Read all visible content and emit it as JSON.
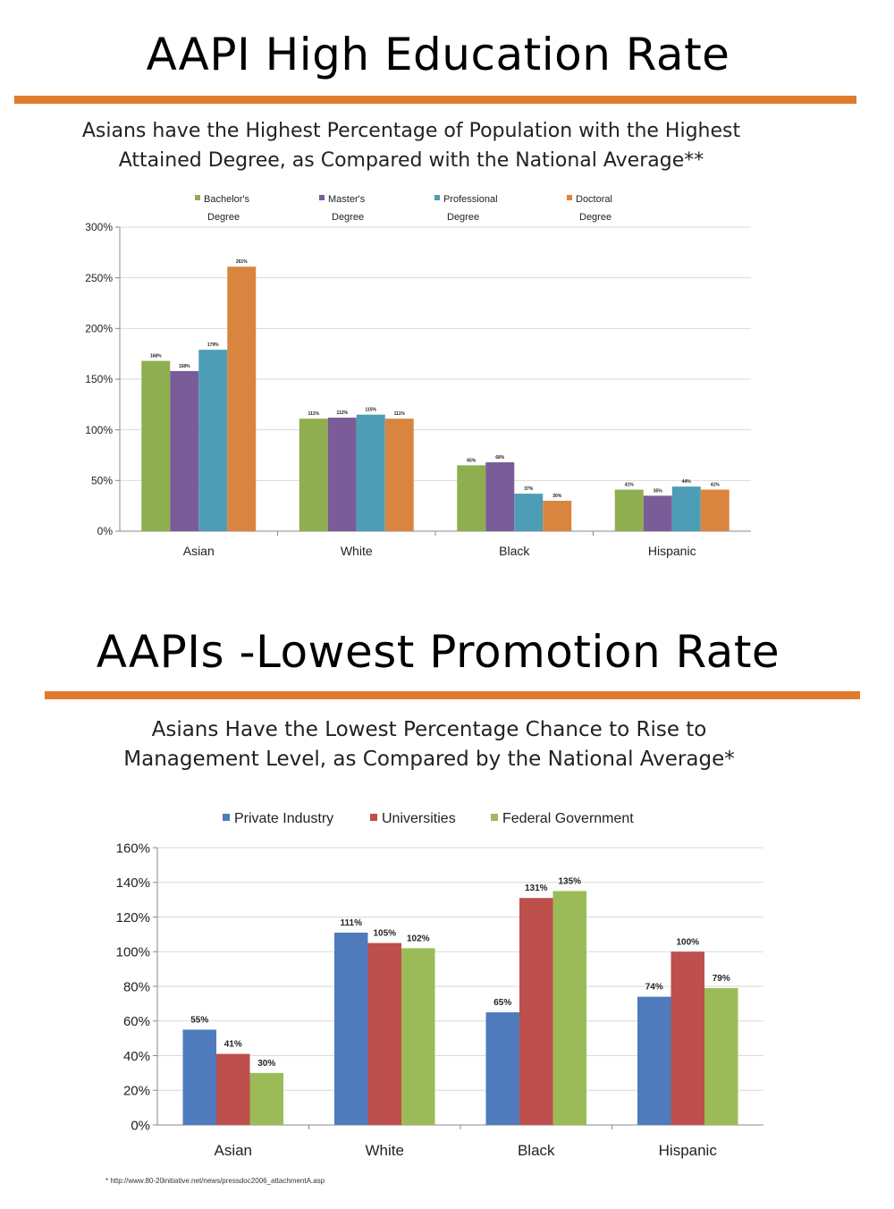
{
  "slide1": {
    "title": "AAPI High Education Rate",
    "subtitle_line1": "Asians have the Highest Percentage of Population with the Highest",
    "subtitle_line2": "Attained Degree, as Compared with the National Average**"
  },
  "slide2": {
    "title": "AAPIs -Lowest Promotion Rate",
    "subtitle_line1": "Asians Have the Lowest Percentage Chance to Rise to",
    "subtitle_line2": "Management Level, as Compared by the National Average*"
  },
  "footnote": "* http://www.80-20initiative.net/news/pressdoc2006_attachmentA.asp",
  "colors": {
    "orange_rule": "#e07a2c",
    "green": "#8fae4f",
    "purple": "#7a5c99",
    "teal": "#4e9db6",
    "orange": "#d9853f",
    "blue": "#4f7bbd",
    "red": "#bd4f4c",
    "lightgreen": "#9bbb58"
  },
  "chart_data": [
    {
      "type": "bar",
      "title": "Asians have the Highest Percentage of Population with the Highest Attained Degree, as Compared with the National Average**",
      "categories": [
        "Asian",
        "White",
        "Black",
        "Hispanic"
      ],
      "series": [
        {
          "name": "Bachelor's Degree",
          "legend_line1": "Bachelor's",
          "legend_line2": "Degree",
          "color": "#8fae4f",
          "values": [
            168,
            111,
            65,
            41
          ],
          "labels": [
            "168%",
            "111%",
            "65%",
            "41%"
          ]
        },
        {
          "name": "Master's Degree",
          "legend_line1": "Master's",
          "legend_line2": "Degree",
          "color": "#7a5c99",
          "values": [
            158,
            112,
            68,
            35
          ],
          "labels": [
            "158%",
            "112%",
            "68%",
            "35%"
          ]
        },
        {
          "name": "Professional Degree",
          "legend_line1": "Professional",
          "legend_line2": "Degree",
          "color": "#4e9db6",
          "values": [
            179,
            115,
            37,
            44
          ],
          "labels": [
            "179%",
            "115%",
            "37%",
            "44%"
          ]
        },
        {
          "name": "Doctoral Degree",
          "legend_line1": "Doctoral",
          "legend_line2": "Degree",
          "color": "#d9853f",
          "values": [
            261,
            111,
            30,
            41
          ],
          "labels": [
            "261%",
            "111%",
            "30%",
            "41%"
          ]
        }
      ],
      "yticks": [
        "0%",
        "50%",
        "100%",
        "150%",
        "200%",
        "250%",
        "300%"
      ],
      "ylim": [
        0,
        300
      ],
      "legend": "top",
      "grid": true
    },
    {
      "type": "bar",
      "title": "Asians Have the Lowest Percentage Chance to Rise to Management Level, as Compared by the National Average*",
      "categories": [
        "Asian",
        "White",
        "Black",
        "Hispanic"
      ],
      "series": [
        {
          "name": "Private Industry",
          "color": "#4f7bbd",
          "values": [
            55,
            111,
            65,
            74
          ],
          "labels": [
            "55%",
            "111%",
            "65%",
            "74%"
          ]
        },
        {
          "name": "Universities",
          "color": "#bd4f4c",
          "values": [
            41,
            105,
            131,
            100
          ],
          "labels": [
            "41%",
            "105%",
            "131%",
            "100%"
          ]
        },
        {
          "name": "Federal Government",
          "color": "#9bbb58",
          "values": [
            30,
            102,
            135,
            79
          ],
          "labels": [
            "30%",
            "102%",
            "135%",
            "79%"
          ]
        }
      ],
      "yticks": [
        "0%",
        "20%",
        "40%",
        "60%",
        "80%",
        "100%",
        "120%",
        "140%",
        "160%"
      ],
      "ylim": [
        0,
        160
      ],
      "legend": "top",
      "grid": true
    }
  ]
}
